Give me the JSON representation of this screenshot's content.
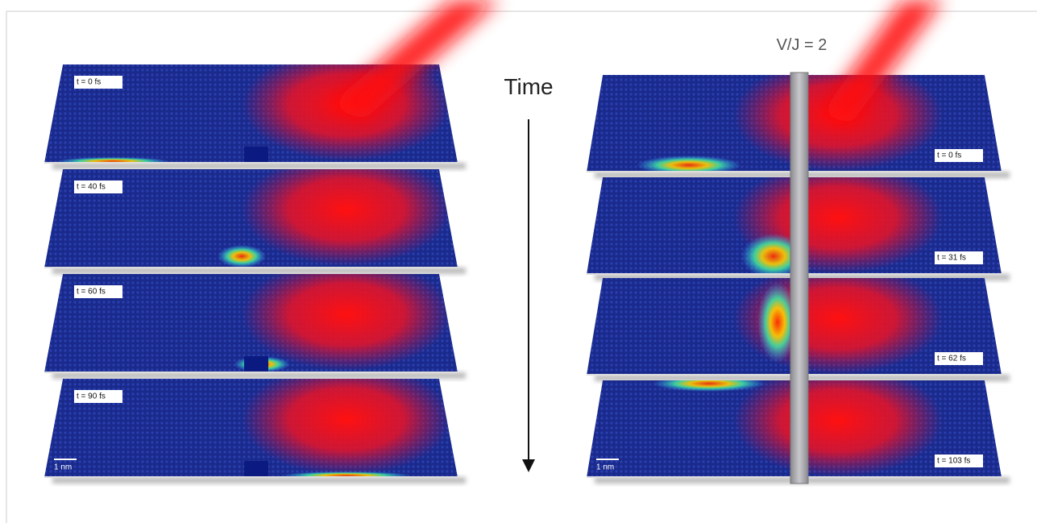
{
  "barrier_label": "V/J = 2",
  "axis_label": "Time",
  "left_panels": [
    {
      "label": "t = 0 fs"
    },
    {
      "label": "t = 40 fs"
    },
    {
      "label": "t = 60 fs"
    },
    {
      "label": "t = 90 fs"
    }
  ],
  "left_scale": "1 nm",
  "right_panels": [
    {
      "label": "t = 0 fs"
    },
    {
      "label": "t = 31 fs"
    },
    {
      "label": "t = 62 fs"
    },
    {
      "label": "t = 103 fs"
    }
  ],
  "right_scale": "1 nm"
}
